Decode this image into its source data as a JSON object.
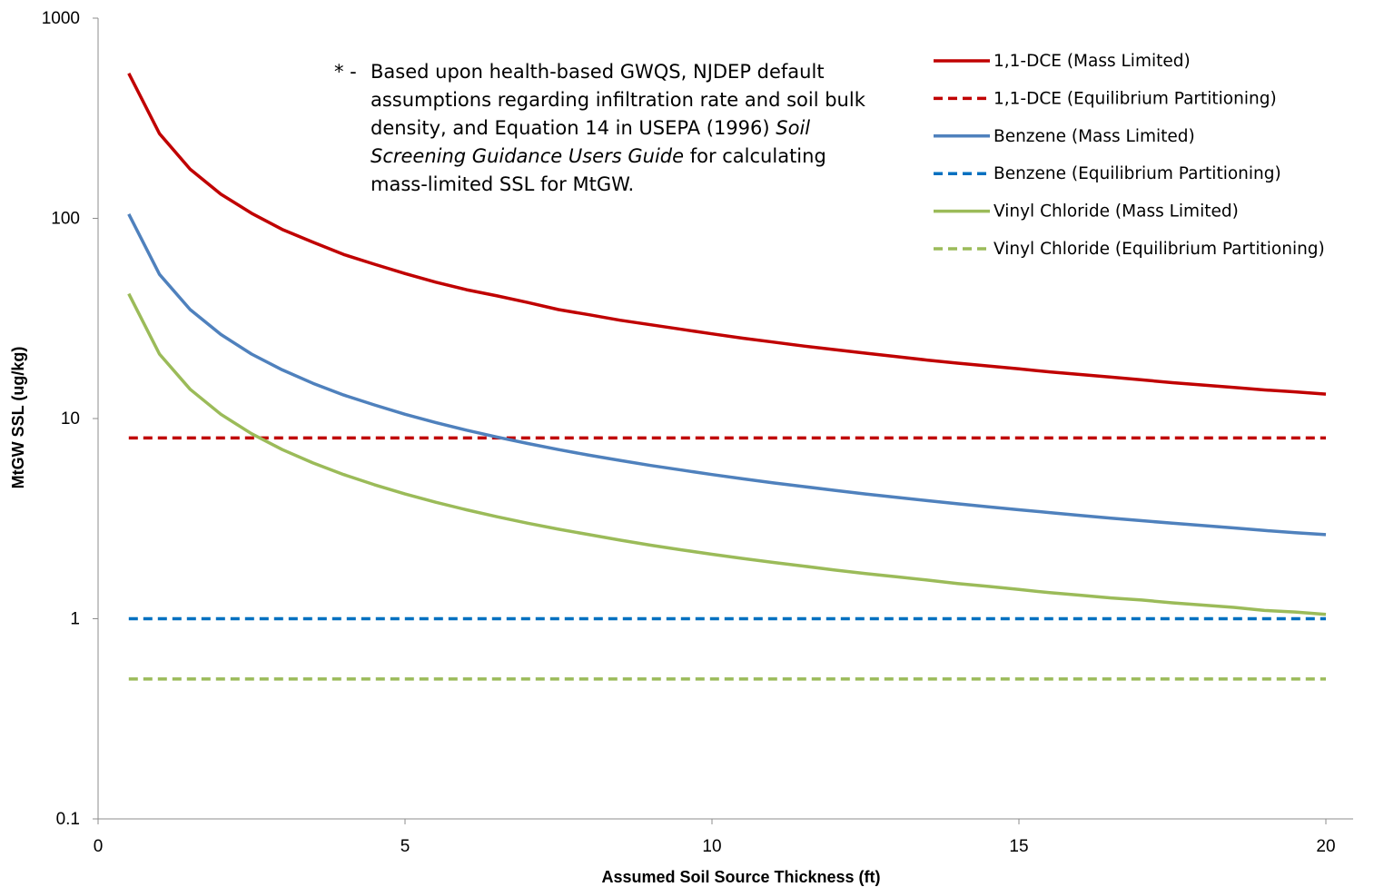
{
  "chart_data": {
    "type": "line",
    "xlabel": "Assumed Soil Source Thickness (ft)",
    "ylabel": "MtGW SSL (ug/kg)",
    "xlim": [
      0,
      20
    ],
    "ylim": [
      0.1,
      1000
    ],
    "yscale": "log",
    "x_ticks": [
      "0",
      "5",
      "10",
      "15",
      "20"
    ],
    "y_ticks": [
      "0.1",
      "1",
      "10",
      "100",
      "1000"
    ],
    "legend_position": "top-right",
    "grid": false,
    "x": [
      0.5,
      1,
      1.5,
      2,
      2.5,
      3,
      3.5,
      4,
      4.5,
      5,
      5.5,
      6,
      6.5,
      7,
      7.5,
      8,
      8.5,
      9,
      9.5,
      10,
      10.5,
      11,
      11.5,
      12,
      12.5,
      13,
      13.5,
      14,
      14.5,
      15,
      15.5,
      16,
      16.5,
      17,
      17.5,
      18,
      18.5,
      19,
      19.5,
      20
    ],
    "series": [
      {
        "name": "1,1-DCE (Mass Limited)",
        "color": "#C00000",
        "dash": false,
        "values": [
          530,
          265,
          176,
          132,
          106,
          88,
          76,
          66,
          59,
          53,
          48,
          44,
          41,
          38,
          35,
          33,
          31,
          29.4,
          27.9,
          26.5,
          25.2,
          24.1,
          23.0,
          22.1,
          21.2,
          20.4,
          19.6,
          18.9,
          18.3,
          17.7,
          17.1,
          16.6,
          16.1,
          15.6,
          15.1,
          14.7,
          14.3,
          13.9,
          13.6,
          13.25
        ]
      },
      {
        "name": "1,1-DCE (Equilibrium Partitioning)",
        "color": "#C00000",
        "dash": true,
        "values": [
          8,
          8,
          8,
          8,
          8,
          8,
          8,
          8,
          8,
          8,
          8,
          8,
          8,
          8,
          8,
          8,
          8,
          8,
          8,
          8,
          8,
          8,
          8,
          8,
          8,
          8,
          8,
          8,
          8,
          8,
          8,
          8,
          8,
          8,
          8,
          8,
          8,
          8,
          8,
          8
        ]
      },
      {
        "name": "Benzene (Mass Limited)",
        "color": "#4F81BD",
        "dash": false,
        "values": [
          105,
          52.5,
          35,
          26.3,
          21,
          17.5,
          15,
          13.1,
          11.7,
          10.5,
          9.55,
          8.75,
          8.08,
          7.5,
          7.0,
          6.56,
          6.18,
          5.83,
          5.53,
          5.25,
          5.0,
          4.77,
          4.57,
          4.38,
          4.2,
          4.04,
          3.89,
          3.75,
          3.62,
          3.5,
          3.39,
          3.28,
          3.18,
          3.09,
          3.0,
          2.92,
          2.84,
          2.76,
          2.69,
          2.63
        ]
      },
      {
        "name": "Benzene (Equilibrium Partitioning)",
        "color": "#0070C0",
        "dash": true,
        "values": [
          1,
          1,
          1,
          1,
          1,
          1,
          1,
          1,
          1,
          1,
          1,
          1,
          1,
          1,
          1,
          1,
          1,
          1,
          1,
          1,
          1,
          1,
          1,
          1,
          1,
          1,
          1,
          1,
          1,
          1,
          1,
          1,
          1,
          1,
          1,
          1,
          1,
          1,
          1,
          1
        ]
      },
      {
        "name": "Vinyl Chloride (Mass Limited)",
        "color": "#9BBB59",
        "dash": false,
        "values": [
          42,
          21,
          14,
          10.5,
          8.4,
          7.0,
          6.0,
          5.25,
          4.67,
          4.2,
          3.82,
          3.5,
          3.23,
          3.0,
          2.8,
          2.63,
          2.47,
          2.33,
          2.21,
          2.1,
          2.0,
          1.91,
          1.83,
          1.75,
          1.68,
          1.62,
          1.56,
          1.5,
          1.45,
          1.4,
          1.35,
          1.31,
          1.27,
          1.24,
          1.2,
          1.17,
          1.14,
          1.1,
          1.08,
          1.05
        ]
      },
      {
        "name": "Vinyl Chloride (Equilibrium Partitioning)",
        "color": "#9BBB59",
        "dash": true,
        "values": [
          0.5,
          0.5,
          0.5,
          0.5,
          0.5,
          0.5,
          0.5,
          0.5,
          0.5,
          0.5,
          0.5,
          0.5,
          0.5,
          0.5,
          0.5,
          0.5,
          0.5,
          0.5,
          0.5,
          0.5,
          0.5,
          0.5,
          0.5,
          0.5,
          0.5,
          0.5,
          0.5,
          0.5,
          0.5,
          0.5,
          0.5,
          0.5,
          0.5,
          0.5,
          0.5,
          0.5,
          0.5,
          0.5,
          0.5,
          0.5
        ]
      }
    ]
  },
  "note": {
    "marker": "* -",
    "text_1": "Based upon health-based GWQS, NJDEP default assumptions regarding infiltration rate and soil bulk density, and Equation 14 in USEPA (1996) ",
    "text_italic": "Soil Screening Guidance Users Guide",
    "text_2": " for calculating mass-limited SSL for MtGW."
  }
}
